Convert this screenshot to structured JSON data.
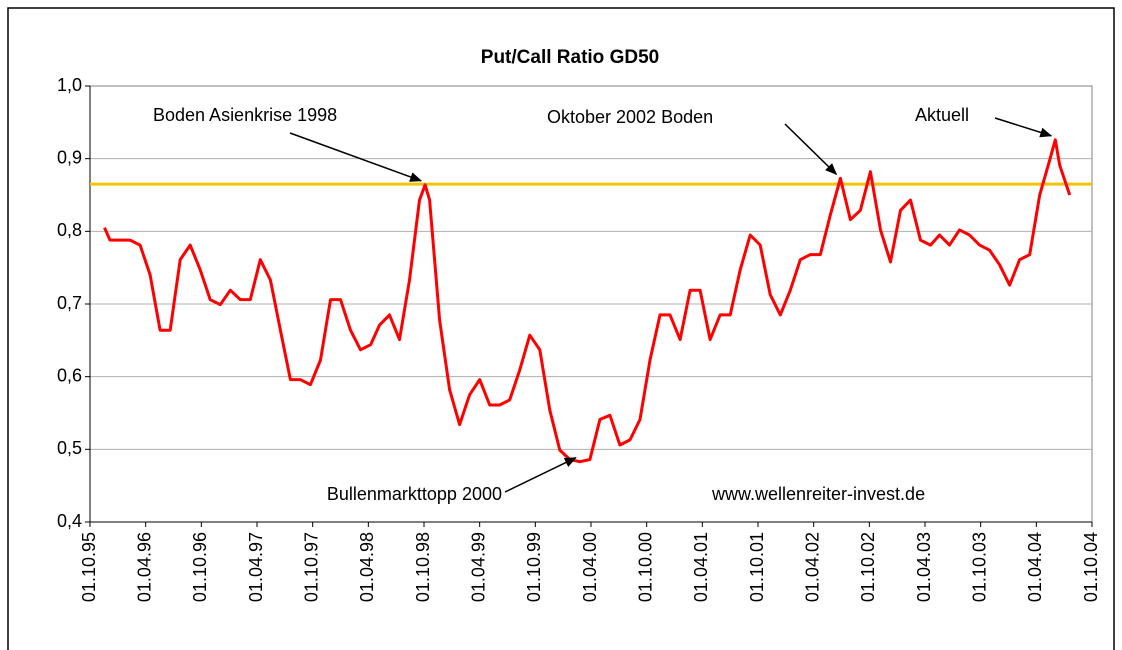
{
  "chart_data": {
    "type": "line",
    "title": "Put/Call Ratio GD50",
    "xlim": [
      1995.75,
      2004.75
    ],
    "xticks": [
      {
        "value": 1995.75,
        "label": "01.10.95"
      },
      {
        "value": 1996.25,
        "label": "01.04.96"
      },
      {
        "value": 1996.75,
        "label": "01.10.96"
      },
      {
        "value": 1997.25,
        "label": "01.04.97"
      },
      {
        "value": 1997.75,
        "label": "01.10.97"
      },
      {
        "value": 1998.25,
        "label": "01.04.98"
      },
      {
        "value": 1998.75,
        "label": "01.10.98"
      },
      {
        "value": 1999.25,
        "label": "01.04.99"
      },
      {
        "value": 1999.75,
        "label": "01.10.99"
      },
      {
        "value": 2000.25,
        "label": "01.04.00"
      },
      {
        "value": 2000.75,
        "label": "01.10.00"
      },
      {
        "value": 2001.25,
        "label": "01.04.01"
      },
      {
        "value": 2001.75,
        "label": "01.10.01"
      },
      {
        "value": 2002.25,
        "label": "01.04.02"
      },
      {
        "value": 2002.75,
        "label": "01.10.02"
      },
      {
        "value": 2003.25,
        "label": "01.04.03"
      },
      {
        "value": 2003.75,
        "label": "01.10.03"
      },
      {
        "value": 2004.25,
        "label": "01.04.04"
      },
      {
        "value": 2004.75,
        "label": "01.10.04"
      }
    ],
    "ylim": [
      0.4,
      1.0
    ],
    "yticks": [
      {
        "value": 0.4,
        "label": "0,4"
      },
      {
        "value": 0.5,
        "label": "0,5"
      },
      {
        "value": 0.6,
        "label": "0,6"
      },
      {
        "value": 0.7,
        "label": "0,7"
      },
      {
        "value": 0.8,
        "label": "0,8"
      },
      {
        "value": 0.9,
        "label": "0,9"
      },
      {
        "value": 1.0,
        "label": "1,0"
      }
    ],
    "grid": true,
    "x": [
      1995.88,
      1995.93,
      1996.02,
      1996.11,
      1996.2,
      1996.29,
      1996.38,
      1996.47,
      1996.56,
      1996.65,
      1996.74,
      1996.83,
      1996.92,
      1997.01,
      1997.1,
      1997.19,
      1997.28,
      1997.37,
      1997.46,
      1997.55,
      1997.64,
      1997.73,
      1997.82,
      1997.91,
      1998.0,
      1998.09,
      1998.18,
      1998.27,
      1998.35,
      1998.44,
      1998.53,
      1998.62,
      1998.71,
      1998.76,
      1998.8,
      1998.89,
      1998.98,
      1999.07,
      1999.16,
      1999.25,
      1999.34,
      1999.43,
      1999.52,
      1999.61,
      1999.7,
      1999.79,
      1999.88,
      1999.97,
      2000.06,
      2000.15,
      2000.24,
      2000.33,
      2000.42,
      2000.51,
      2000.6,
      2000.69,
      2000.78,
      2000.87,
      2000.96,
      2001.05,
      2001.14,
      2001.23,
      2001.32,
      2001.41,
      2001.5,
      2001.59,
      2001.68,
      2001.77,
      2001.86,
      2001.95,
      2002.04,
      2002.13,
      2002.22,
      2002.31,
      2002.4,
      2002.49,
      2002.58,
      2002.67,
      2002.76,
      2002.85,
      2002.94,
      2003.03,
      2003.12,
      2003.21,
      2003.3,
      2003.38,
      2003.47,
      2003.56,
      2003.65,
      2003.74,
      2003.83,
      2003.92,
      2004.01,
      2004.1,
      2004.19,
      2004.28,
      2004.37,
      2004.42,
      2004.46,
      2004.55
    ],
    "series": [
      {
        "color": "#ff0000",
        "values": [
          0.805,
          0.788,
          0.788,
          0.788,
          0.781,
          0.74,
          0.664,
          0.664,
          0.761,
          0.781,
          0.747,
          0.706,
          0.699,
          0.719,
          0.706,
          0.706,
          0.761,
          0.733,
          0.664,
          0.596,
          0.596,
          0.589,
          0.623,
          0.706,
          0.706,
          0.664,
          0.637,
          0.644,
          0.671,
          0.685,
          0.651,
          0.733,
          0.843,
          0.864,
          0.843,
          0.678,
          0.582,
          0.534,
          0.575,
          0.596,
          0.561,
          0.561,
          0.568,
          0.609,
          0.657,
          0.637,
          0.554,
          0.499,
          0.486,
          0.483,
          0.486,
          0.541,
          0.547,
          0.506,
          0.513,
          0.541,
          0.623,
          0.685,
          0.685,
          0.651,
          0.719,
          0.719,
          0.651,
          0.685,
          0.685,
          0.747,
          0.795,
          0.781,
          0.713,
          0.685,
          0.719,
          0.761,
          0.768,
          0.768,
          0.823,
          0.873,
          0.816,
          0.829,
          0.882,
          0.802,
          0.758,
          0.829,
          0.843,
          0.788,
          0.781,
          0.795,
          0.781,
          0.802,
          0.795,
          0.781,
          0.774,
          0.754,
          0.726,
          0.761,
          0.768,
          0.85,
          0.898,
          0.926,
          0.891,
          0.85
        ]
      }
    ],
    "reference_line": {
      "value": 0.865,
      "color": "#f5c400"
    },
    "annotations": [
      {
        "text": "Boden Asienkrise 1998",
        "x": 1998.76,
        "y": 0.864
      },
      {
        "text": "Oktober 2002 Boden",
        "x": 2002.49,
        "y": 0.873
      },
      {
        "text": "Aktuell",
        "x": 2004.42,
        "y": 0.926
      },
      {
        "text": "Bullenmarkttopp 2000",
        "x": 2000.15,
        "y": 0.483
      }
    ],
    "watermark": "www.wellenreiter-invest.de"
  }
}
